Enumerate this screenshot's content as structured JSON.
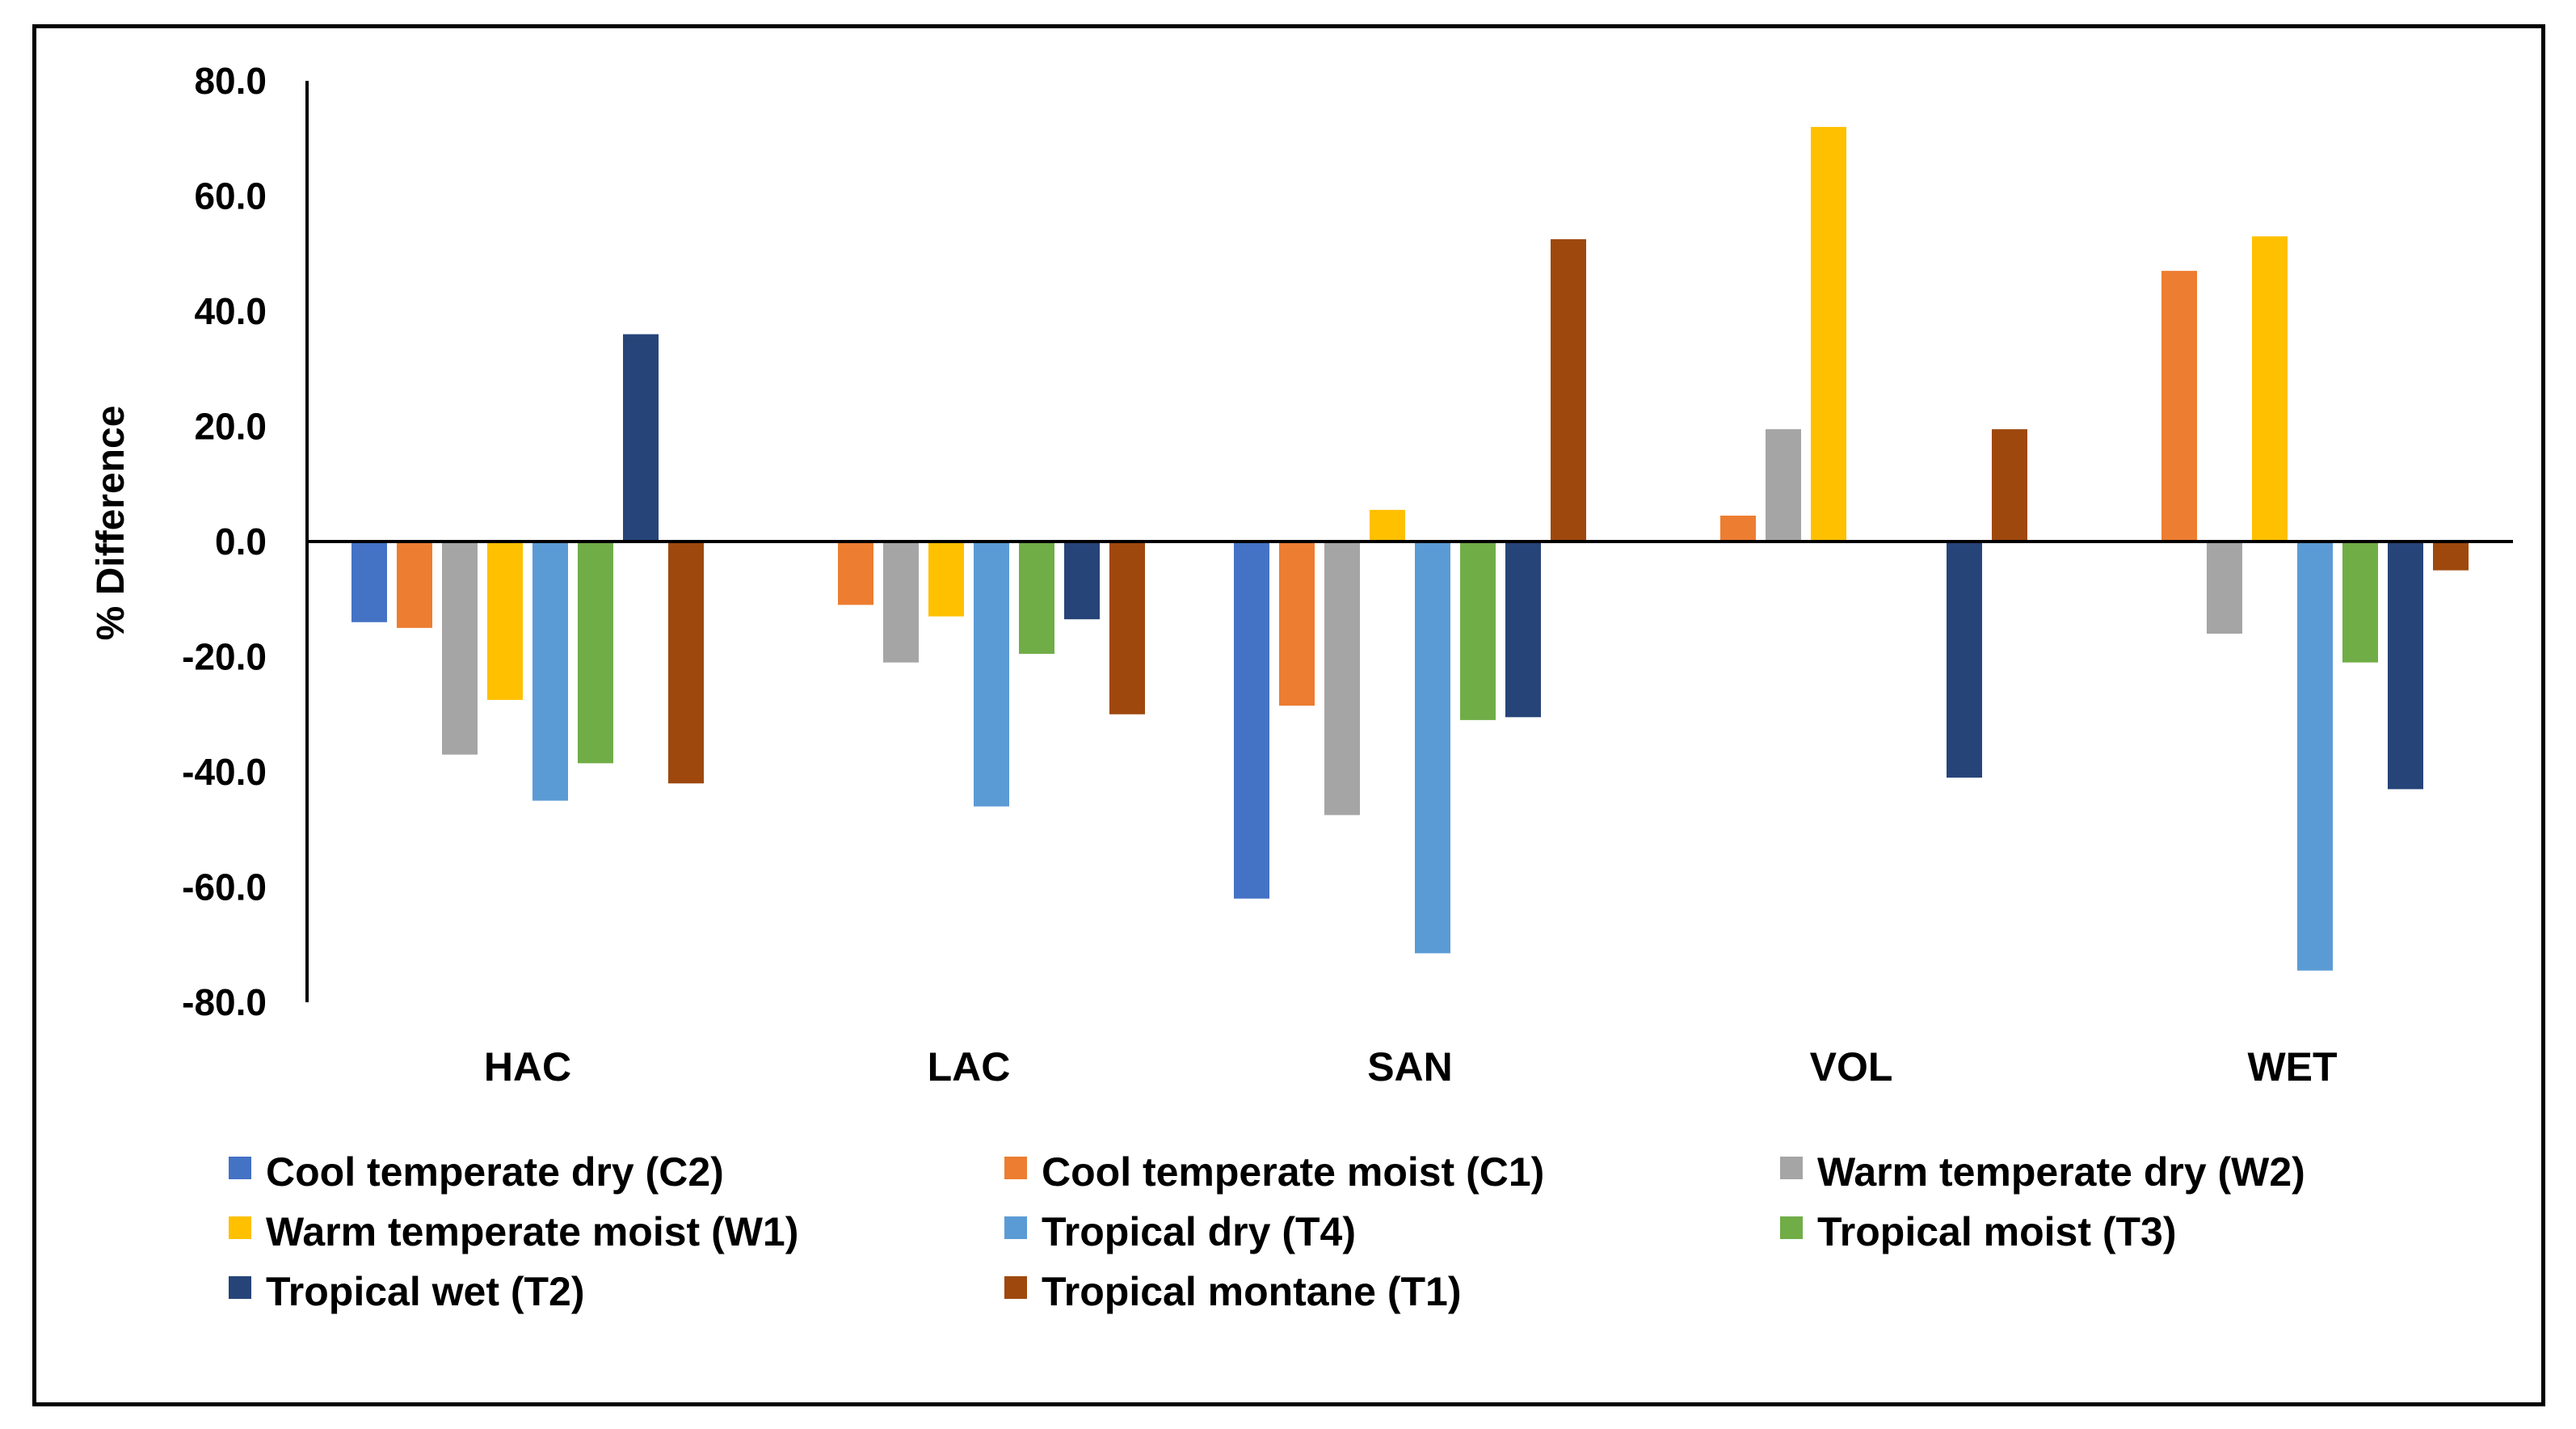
{
  "chart_data": {
    "type": "bar",
    "title": "",
    "xlabel": "",
    "ylabel": "% Difference",
    "ylim": [
      -80,
      80
    ],
    "yticks": [
      80,
      60,
      40,
      20,
      0,
      -20,
      -40,
      -60,
      -80
    ],
    "ytick_labels": [
      "80.0",
      "60.0",
      "40.0",
      "20.0",
      "0.0",
      "-20.0",
      "-40.0",
      "-60.0",
      "-80.0"
    ],
    "categories": [
      "HAC",
      "LAC",
      "SAN",
      "VOL",
      "WET"
    ],
    "series": [
      {
        "name": "Cool temperate dry (C2)",
        "color": "#4472C4",
        "values": [
          -14,
          null,
          -62,
          null,
          null
        ]
      },
      {
        "name": "Cool temperate moist (C1)",
        "color": "#ED7D31",
        "values": [
          -15,
          -11,
          -28.5,
          4.5,
          47
        ]
      },
      {
        "name": "Warm temperate dry (W2)",
        "color": "#A5A5A5",
        "values": [
          -37,
          -21,
          -47.5,
          19.5,
          -16
        ]
      },
      {
        "name": "Warm temperate moist (W1)",
        "color": "#FFC000",
        "values": [
          -27.5,
          -13,
          5.5,
          72,
          53
        ]
      },
      {
        "name": "Tropical dry (T4)",
        "color": "#5B9BD5",
        "values": [
          -45,
          -46,
          -71.5,
          null,
          -74.5
        ]
      },
      {
        "name": "Tropical moist (T3)",
        "color": "#70AD47",
        "values": [
          -38.5,
          -19.5,
          -31,
          null,
          -21
        ]
      },
      {
        "name": "Tropical wet (T2)",
        "color": "#264478",
        "values": [
          36,
          -13.5,
          -30.5,
          -41,
          -43
        ]
      },
      {
        "name": "Tropical montane (T1)",
        "color": "#9E480E",
        "values": [
          -42,
          -30,
          52.5,
          19.5,
          -5
        ]
      }
    ],
    "legend_position": "bottom",
    "grid": false
  }
}
